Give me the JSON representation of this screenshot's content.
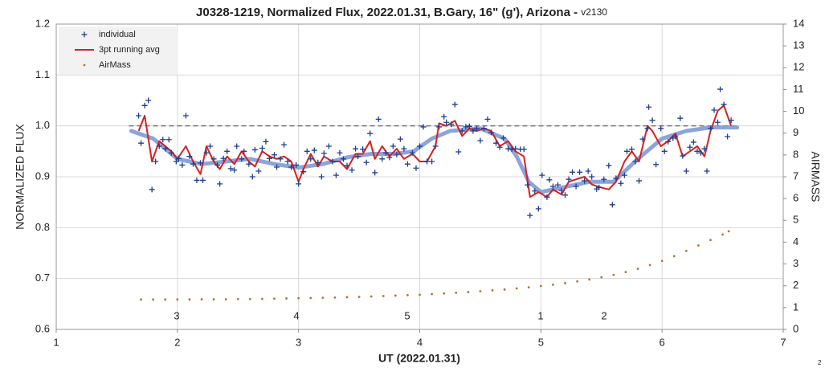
{
  "chart_data": {
    "type": "scatter",
    "title": "J0328-1219, Normalized Flux, 2022.01.31, B.Gary, 16\" (g'), Arizona - ",
    "title_suffix": "v2130",
    "x_label": "UT (2022.01.31)",
    "y_label": "NORMALIZED FLUX",
    "y2_label": "AIRMASS",
    "corner_note": "2",
    "xlim": [
      1,
      7
    ],
    "xticks": [
      1,
      2,
      3,
      4,
      5,
      6,
      7
    ],
    "ylim": [
      0.6,
      1.2
    ],
    "yticks": [
      0.6,
      0.7,
      0.8,
      0.9,
      {
        "value": 1,
        "label": "1.0"
      },
      1.1,
      1.2
    ],
    "y2lim": [
      0,
      14
    ],
    "y2ticks": [
      0,
      1,
      2,
      3,
      4,
      5,
      6,
      7,
      8,
      9,
      10,
      11,
      12,
      13,
      14
    ],
    "grid": true,
    "legend": "top-left",
    "reference_value": 1,
    "annotations": [
      "3",
      "4",
      "5",
      "1",
      "2"
    ],
    "series": [
      {
        "name": "individual",
        "color": "#1f3f8f",
        "marker": "plus",
        "x": [
          1.68,
          1.7,
          1.73,
          1.76,
          1.79,
          1.82,
          1.85,
          1.88,
          1.9,
          1.93,
          1.95,
          1.99,
          2.01,
          2.04,
          2.07,
          2.1,
          2.13,
          2.16,
          2.19,
          2.21,
          2.24,
          2.27,
          2.3,
          2.33,
          2.35,
          2.38,
          2.41,
          2.44,
          2.47,
          2.49,
          2.53,
          2.55,
          2.59,
          2.62,
          2.64,
          2.67,
          2.7,
          2.73,
          2.76,
          2.8,
          2.82,
          2.85,
          2.88,
          2.91,
          2.94,
          2.98,
          3.0,
          3.04,
          3.07,
          3.1,
          3.13,
          3.16,
          3.19,
          3.21,
          3.25,
          3.28,
          3.31,
          3.34,
          3.37,
          3.4,
          3.44,
          3.47,
          3.49,
          3.53,
          3.56,
          3.59,
          3.63,
          3.66,
          3.69,
          3.72,
          3.75,
          3.78,
          3.81,
          3.84,
          3.87,
          3.9,
          3.94,
          3.97,
          4.0,
          4.03,
          4.06,
          4.1,
          4.13,
          4.16,
          4.2,
          4.22,
          4.26,
          4.29,
          4.32,
          4.35,
          4.38,
          4.41,
          4.44,
          4.47,
          4.5,
          4.53,
          4.56,
          4.59,
          4.63,
          4.66,
          4.69,
          4.73,
          4.76,
          4.79,
          4.83,
          4.86,
          4.89,
          4.91,
          4.95,
          4.98,
          5.01,
          5.05,
          5.07,
          5.1,
          5.14,
          5.17,
          5.2,
          5.23,
          5.26,
          5.29,
          5.32,
          5.36,
          5.39,
          5.42,
          5.46,
          5.48,
          5.52,
          5.56,
          5.59,
          5.62,
          5.66,
          5.69,
          5.71,
          5.75,
          5.78,
          5.81,
          5.84,
          5.88,
          5.89,
          5.92,
          5.95,
          5.99,
          6.02,
          6.05,
          6.09,
          6.11,
          6.15,
          6.17,
          6.2,
          6.23,
          6.26,
          6.29,
          6.32,
          6.35,
          6.37,
          6.4,
          6.43,
          6.46,
          6.48,
          6.51,
          6.54,
          6.57
        ],
        "values": [
          1.02,
          0.966,
          1.04,
          1.05,
          0.875,
          0.93,
          0.96,
          0.973,
          0.955,
          0.973,
          0.947,
          0.93,
          0.936,
          0.923,
          1.02,
          0.94,
          0.925,
          0.893,
          0.927,
          0.893,
          0.947,
          0.96,
          0.935,
          0.923,
          0.886,
          0.936,
          0.95,
          0.916,
          0.913,
          0.96,
          0.935,
          0.95,
          0.925,
          0.9,
          0.953,
          0.911,
          0.956,
          0.969,
          0.936,
          0.943,
          0.919,
          0.935,
          0.963,
          0.93,
          0.919,
          0.923,
          0.886,
          0.91,
          0.95,
          0.935,
          0.952,
          0.928,
          0.9,
          0.946,
          0.96,
          0.93,
          0.903,
          0.947,
          0.935,
          0.922,
          0.913,
          0.955,
          0.94,
          0.954,
          0.928,
          0.985,
          0.908,
          1.013,
          0.935,
          0.947,
          0.938,
          0.96,
          0.944,
          0.974,
          0.955,
          0.925,
          0.947,
          0.917,
          0.96,
          0.998,
          0.93,
          0.93,
          0.96,
          0.998,
          1.018,
          1.007,
          1.003,
          1.042,
          0.949,
          0.99,
          0.998,
          0.999,
          0.99,
          0.995,
          0.971,
          0.995,
          1.013,
          0.987,
          0.966,
          0.958,
          0.976,
          0.955,
          0.954,
          0.955,
          0.954,
          0.954,
          0.884,
          0.824,
          0.872,
          0.837,
          0.903,
          0.86,
          0.894,
          0.881,
          0.884,
          0.873,
          0.864,
          0.895,
          0.909,
          0.881,
          0.909,
          0.892,
          0.911,
          0.9,
          0.876,
          0.879,
          0.895,
          0.922,
          0.845,
          0.897,
          0.887,
          0.903,
          0.95,
          0.954,
          0.93,
          0.892,
          0.974,
          0.995,
          1.037,
          1.011,
          0.924,
          0.995,
          0.95,
          0.969,
          0.976,
          0.979,
          1.015,
          0.941,
          0.911,
          0.958,
          0.968,
          0.95,
          0.947,
          0.955,
          0.911,
          0.995,
          1.031,
          1.007,
          1.072,
          1.042,
          0.979,
          1.011
        ]
      },
      {
        "name": "3pt running avg",
        "color": "#d62020",
        "marker": "line",
        "x": [
          1.68,
          1.73,
          1.79,
          1.85,
          1.9,
          1.95,
          2.0,
          2.07,
          2.13,
          2.19,
          2.24,
          2.3,
          2.35,
          2.41,
          2.47,
          2.53,
          2.59,
          2.64,
          2.7,
          2.76,
          2.82,
          2.88,
          2.94,
          3.0,
          3.04,
          3.1,
          3.16,
          3.21,
          3.28,
          3.34,
          3.4,
          3.47,
          3.53,
          3.59,
          3.63,
          3.69,
          3.75,
          3.81,
          3.87,
          3.94,
          4.0,
          4.06,
          4.13,
          4.16,
          4.22,
          4.29,
          4.35,
          4.41,
          4.47,
          4.53,
          4.59,
          4.66,
          4.73,
          4.79,
          4.86,
          4.91,
          4.98,
          5.05,
          5.1,
          5.17,
          5.23,
          5.29,
          5.36,
          5.42,
          5.48,
          5.56,
          5.62,
          5.69,
          5.75,
          5.81,
          5.88,
          5.92,
          5.99,
          6.05,
          6.11,
          6.17,
          6.23,
          6.29,
          6.35,
          6.4,
          6.46,
          6.51,
          6.57
        ],
        "values": [
          0.99,
          1.02,
          0.93,
          0.97,
          0.96,
          0.95,
          0.935,
          0.96,
          0.93,
          0.905,
          0.96,
          0.93,
          0.915,
          0.94,
          0.925,
          0.95,
          0.93,
          0.92,
          0.95,
          0.94,
          0.935,
          0.94,
          0.93,
          0.89,
          0.915,
          0.945,
          0.92,
          0.94,
          0.93,
          0.93,
          0.915,
          0.945,
          0.945,
          0.97,
          0.935,
          0.96,
          0.94,
          0.955,
          0.935,
          0.945,
          0.93,
          0.93,
          0.96,
          1.005,
          1.0,
          1.01,
          0.98,
          0.995,
          0.99,
          0.995,
          0.99,
          0.96,
          0.97,
          0.95,
          0.94,
          0.86,
          0.87,
          0.86,
          0.875,
          0.865,
          0.89,
          0.895,
          0.9,
          0.885,
          0.88,
          0.875,
          0.89,
          0.93,
          0.95,
          0.93,
          1.0,
          0.99,
          0.96,
          0.97,
          0.985,
          0.94,
          0.95,
          0.96,
          0.94,
          0.99,
          1.03,
          1.04,
          1.0
        ]
      },
      {
        "name": "AirMass",
        "color": "#c0702a",
        "marker": "dot",
        "axis": "y2",
        "x": [
          1.7,
          1.8,
          1.9,
          2.0,
          2.1,
          2.2,
          2.3,
          2.4,
          2.5,
          2.6,
          2.7,
          2.8,
          2.9,
          3.0,
          3.1,
          3.2,
          3.3,
          3.4,
          3.5,
          3.6,
          3.7,
          3.8,
          3.9,
          4.0,
          4.1,
          4.2,
          4.3,
          4.4,
          4.5,
          4.6,
          4.7,
          4.8,
          4.9,
          5.0,
          5.1,
          5.2,
          5.3,
          5.4,
          5.5,
          5.6,
          5.7,
          5.8,
          5.9,
          6.0,
          6.1,
          6.2,
          6.3,
          6.4,
          6.5,
          6.55
        ],
        "values": [
          1.37,
          1.37,
          1.37,
          1.37,
          1.37,
          1.38,
          1.38,
          1.38,
          1.39,
          1.39,
          1.4,
          1.41,
          1.42,
          1.43,
          1.44,
          1.45,
          1.46,
          1.48,
          1.49,
          1.51,
          1.53,
          1.55,
          1.57,
          1.59,
          1.62,
          1.65,
          1.68,
          1.71,
          1.75,
          1.79,
          1.83,
          1.88,
          1.93,
          1.99,
          2.05,
          2.12,
          2.2,
          2.29,
          2.39,
          2.5,
          2.63,
          2.78,
          2.95,
          3.14,
          3.36,
          3.6,
          3.85,
          4.1,
          4.35,
          4.5
        ]
      }
    ],
    "trend": {
      "color": "#7f9ad8",
      "x": [
        1.62,
        1.8,
        2.0,
        2.2,
        2.4,
        2.6,
        2.8,
        3.0,
        3.2,
        3.4,
        3.6,
        3.8,
        3.95,
        4.1,
        4.25,
        4.5,
        4.7,
        4.8,
        4.9,
        5.0,
        5.2,
        5.4,
        5.6,
        5.8,
        6.0,
        6.2,
        6.4,
        6.62
      ],
      "values": [
        0.99,
        0.975,
        0.935,
        0.925,
        0.93,
        0.935,
        0.925,
        0.918,
        0.925,
        0.938,
        0.945,
        0.945,
        0.95,
        0.975,
        0.99,
        0.995,
        0.975,
        0.94,
        0.89,
        0.87,
        0.88,
        0.89,
        0.89,
        0.935,
        0.975,
        0.99,
        0.997,
        0.997
      ]
    }
  }
}
